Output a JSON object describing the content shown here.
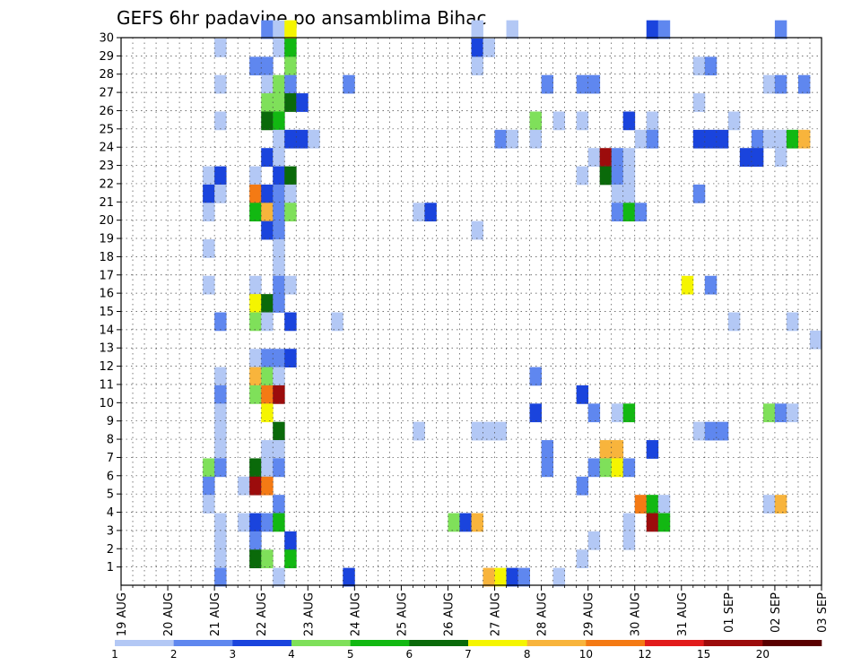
{
  "chart_data": {
    "type": "heatmap",
    "title": "GEFS 6hr padavine po ansamblima Bihac",
    "x_axis": {
      "ticks": [
        "19 AUG",
        "20 AUG",
        "21 AUG",
        "22 AUG",
        "23 AUG",
        "24 AUG",
        "25 AUG",
        "26 AUG",
        "27 AUG",
        "28 AUG",
        "29 AUG",
        "30 AUG",
        "31 AUG",
        "01 SEP",
        "02 SEP",
        "03 SEP"
      ],
      "steps_per_day": 4,
      "range_steps": [
        0,
        60
      ]
    },
    "y_axis": {
      "ticks": [
        "1",
        "2",
        "3",
        "4",
        "5",
        "6",
        "7",
        "8",
        "9",
        "10",
        "11",
        "12",
        "13",
        "14",
        "15",
        "16",
        "17",
        "18",
        "19",
        "20",
        "21",
        "22",
        "23",
        "24",
        "25",
        "26",
        "27",
        "28",
        "29",
        "30"
      ],
      "range": [
        0,
        30
      ]
    },
    "grid": true,
    "colorbar": {
      "levels": [
        "1",
        "2",
        "3",
        "4",
        "5",
        "6",
        "7",
        "8",
        "10",
        "12",
        "15",
        "20"
      ],
      "colors": [
        "#b3c8f5",
        "#5f87ef",
        "#1a44dd",
        "#7fe05a",
        "#12b812",
        "#0a6a0a",
        "#f5f500",
        "#f8b43c",
        "#f47a14",
        "#e21c1c",
        "#9c0c0c",
        "#5a0000"
      ]
    },
    "cells_format": "[member, time_step, color_class] (time_step = 6h step from 19 AUG 00Z; class 0-11 = colorbar bins)",
    "cells": [
      [
        30,
        12,
        1
      ],
      [
        30,
        13,
        0
      ],
      [
        30,
        14,
        6
      ],
      [
        30,
        30,
        0
      ],
      [
        30,
        33,
        0
      ],
      [
        30,
        45,
        2
      ],
      [
        30,
        46,
        1
      ],
      [
        30,
        56,
        1
      ],
      [
        29,
        8,
        0
      ],
      [
        29,
        13,
        0
      ],
      [
        29,
        14,
        4
      ],
      [
        29,
        30,
        2
      ],
      [
        29,
        31,
        0
      ],
      [
        28,
        11,
        1
      ],
      [
        28,
        12,
        1
      ],
      [
        28,
        14,
        3
      ],
      [
        28,
        30,
        0
      ],
      [
        28,
        49,
        0
      ],
      [
        28,
        50,
        1
      ],
      [
        27,
        8,
        0
      ],
      [
        27,
        12,
        0
      ],
      [
        27,
        13,
        3
      ],
      [
        27,
        14,
        1
      ],
      [
        27,
        19,
        1
      ],
      [
        27,
        36,
        1
      ],
      [
        27,
        39,
        1
      ],
      [
        27,
        40,
        1
      ],
      [
        27,
        55,
        0
      ],
      [
        27,
        56,
        1
      ],
      [
        27,
        58,
        1
      ],
      [
        26,
        12,
        3
      ],
      [
        26,
        13,
        3
      ],
      [
        26,
        14,
        5
      ],
      [
        26,
        15,
        2
      ],
      [
        26,
        49,
        0
      ],
      [
        25,
        8,
        0
      ],
      [
        25,
        12,
        5
      ],
      [
        25,
        13,
        4
      ],
      [
        25,
        35,
        3
      ],
      [
        25,
        37,
        0
      ],
      [
        25,
        39,
        0
      ],
      [
        25,
        43,
        2
      ],
      [
        25,
        45,
        0
      ],
      [
        25,
        52,
        0
      ],
      [
        24,
        13,
        0
      ],
      [
        24,
        14,
        2
      ],
      [
        24,
        15,
        2
      ],
      [
        24,
        16,
        0
      ],
      [
        24,
        32,
        1
      ],
      [
        24,
        33,
        0
      ],
      [
        24,
        35,
        0
      ],
      [
        24,
        44,
        0
      ],
      [
        24,
        45,
        1
      ],
      [
        24,
        49,
        2
      ],
      [
        24,
        50,
        2
      ],
      [
        24,
        51,
        2
      ],
      [
        24,
        54,
        1
      ],
      [
        24,
        55,
        0
      ],
      [
        24,
        56,
        0
      ],
      [
        24,
        57,
        4
      ],
      [
        24,
        58,
        7
      ],
      [
        23,
        12,
        2
      ],
      [
        23,
        13,
        0
      ],
      [
        23,
        40,
        0
      ],
      [
        23,
        41,
        10
      ],
      [
        23,
        42,
        1
      ],
      [
        23,
        43,
        0
      ],
      [
        23,
        53,
        2
      ],
      [
        23,
        54,
        2
      ],
      [
        23,
        56,
        0
      ],
      [
        22,
        7,
        0
      ],
      [
        22,
        8,
        2
      ],
      [
        22,
        11,
        0
      ],
      [
        22,
        13,
        2
      ],
      [
        22,
        14,
        5
      ],
      [
        22,
        39,
        0
      ],
      [
        22,
        41,
        5
      ],
      [
        22,
        42,
        1
      ],
      [
        22,
        43,
        0
      ],
      [
        21,
        7,
        2
      ],
      [
        21,
        8,
        0
      ],
      [
        21,
        11,
        8
      ],
      [
        21,
        12,
        2
      ],
      [
        21,
        13,
        1
      ],
      [
        21,
        14,
        0
      ],
      [
        21,
        42,
        0
      ],
      [
        21,
        43,
        0
      ],
      [
        21,
        49,
        1
      ],
      [
        20,
        7,
        0
      ],
      [
        20,
        11,
        4
      ],
      [
        20,
        12,
        7
      ],
      [
        20,
        13,
        1
      ],
      [
        20,
        14,
        3
      ],
      [
        20,
        25,
        0
      ],
      [
        20,
        26,
        2
      ],
      [
        20,
        42,
        1
      ],
      [
        20,
        43,
        4
      ],
      [
        20,
        44,
        1
      ],
      [
        19,
        12,
        2
      ],
      [
        19,
        13,
        1
      ],
      [
        19,
        30,
        0
      ],
      [
        18,
        7,
        0
      ],
      [
        18,
        13,
        0
      ],
      [
        17,
        13,
        0
      ],
      [
        16,
        7,
        0
      ],
      [
        16,
        11,
        0
      ],
      [
        16,
        13,
        1
      ],
      [
        16,
        14,
        0
      ],
      [
        16,
        48,
        6
      ],
      [
        16,
        50,
        1
      ],
      [
        15,
        11,
        6
      ],
      [
        15,
        12,
        5
      ],
      [
        15,
        13,
        1
      ],
      [
        14,
        8,
        1
      ],
      [
        14,
        11,
        3
      ],
      [
        14,
        12,
        0
      ],
      [
        14,
        14,
        2
      ],
      [
        14,
        18,
        0
      ],
      [
        14,
        52,
        0
      ],
      [
        14,
        57,
        0
      ],
      [
        13,
        59,
        0
      ],
      [
        12,
        11,
        0
      ],
      [
        12,
        12,
        1
      ],
      [
        12,
        13,
        1
      ],
      [
        12,
        14,
        2
      ],
      [
        11,
        8,
        0
      ],
      [
        11,
        11,
        7
      ],
      [
        11,
        12,
        3
      ],
      [
        11,
        13,
        0
      ],
      [
        11,
        35,
        1
      ],
      [
        10,
        8,
        1
      ],
      [
        10,
        11,
        3
      ],
      [
        10,
        12,
        8
      ],
      [
        10,
        13,
        10
      ],
      [
        10,
        39,
        2
      ],
      [
        9,
        8,
        0
      ],
      [
        9,
        12,
        6
      ],
      [
        9,
        35,
        2
      ],
      [
        9,
        40,
        1
      ],
      [
        9,
        42,
        0
      ],
      [
        9,
        43,
        4
      ],
      [
        9,
        55,
        3
      ],
      [
        9,
        56,
        1
      ],
      [
        9,
        57,
        0
      ],
      [
        8,
        8,
        0
      ],
      [
        8,
        13,
        5
      ],
      [
        8,
        25,
        0
      ],
      [
        8,
        30,
        0
      ],
      [
        8,
        31,
        0
      ],
      [
        8,
        32,
        0
      ],
      [
        8,
        49,
        0
      ],
      [
        8,
        50,
        1
      ],
      [
        8,
        51,
        1
      ],
      [
        7,
        8,
        0
      ],
      [
        7,
        12,
        0
      ],
      [
        7,
        13,
        0
      ],
      [
        7,
        36,
        1
      ],
      [
        7,
        41,
        7
      ],
      [
        7,
        42,
        7
      ],
      [
        7,
        45,
        2
      ],
      [
        6,
        7,
        3
      ],
      [
        6,
        8,
        1
      ],
      [
        6,
        11,
        5
      ],
      [
        6,
        12,
        0
      ],
      [
        6,
        13,
        1
      ],
      [
        6,
        36,
        1
      ],
      [
        6,
        40,
        1
      ],
      [
        6,
        41,
        3
      ],
      [
        6,
        42,
        6
      ],
      [
        6,
        43,
        1
      ],
      [
        5,
        7,
        1
      ],
      [
        5,
        10,
        0
      ],
      [
        5,
        11,
        10
      ],
      [
        5,
        12,
        8
      ],
      [
        5,
        39,
        1
      ],
      [
        4,
        7,
        0
      ],
      [
        4,
        13,
        1
      ],
      [
        4,
        44,
        8
      ],
      [
        4,
        45,
        4
      ],
      [
        4,
        46,
        0
      ],
      [
        4,
        55,
        0
      ],
      [
        4,
        56,
        7
      ],
      [
        3,
        8,
        0
      ],
      [
        3,
        10,
        0
      ],
      [
        3,
        11,
        2
      ],
      [
        3,
        12,
        1
      ],
      [
        3,
        13,
        4
      ],
      [
        3,
        28,
        3
      ],
      [
        3,
        29,
        2
      ],
      [
        3,
        30,
        7
      ],
      [
        3,
        43,
        0
      ],
      [
        3,
        45,
        10
      ],
      [
        3,
        46,
        4
      ],
      [
        2,
        8,
        0
      ],
      [
        2,
        11,
        1
      ],
      [
        2,
        14,
        2
      ],
      [
        2,
        40,
        0
      ],
      [
        2,
        43,
        0
      ],
      [
        1,
        8,
        0
      ],
      [
        1,
        11,
        5
      ],
      [
        1,
        12,
        3
      ],
      [
        1,
        14,
        4
      ],
      [
        1,
        39,
        0
      ],
      [
        0,
        8,
        1
      ],
      [
        0,
        13,
        0
      ],
      [
        0,
        19,
        2
      ],
      [
        0,
        31,
        7
      ],
      [
        0,
        32,
        6
      ],
      [
        0,
        33,
        2
      ],
      [
        0,
        34,
        1
      ],
      [
        0,
        37,
        0
      ]
    ]
  }
}
